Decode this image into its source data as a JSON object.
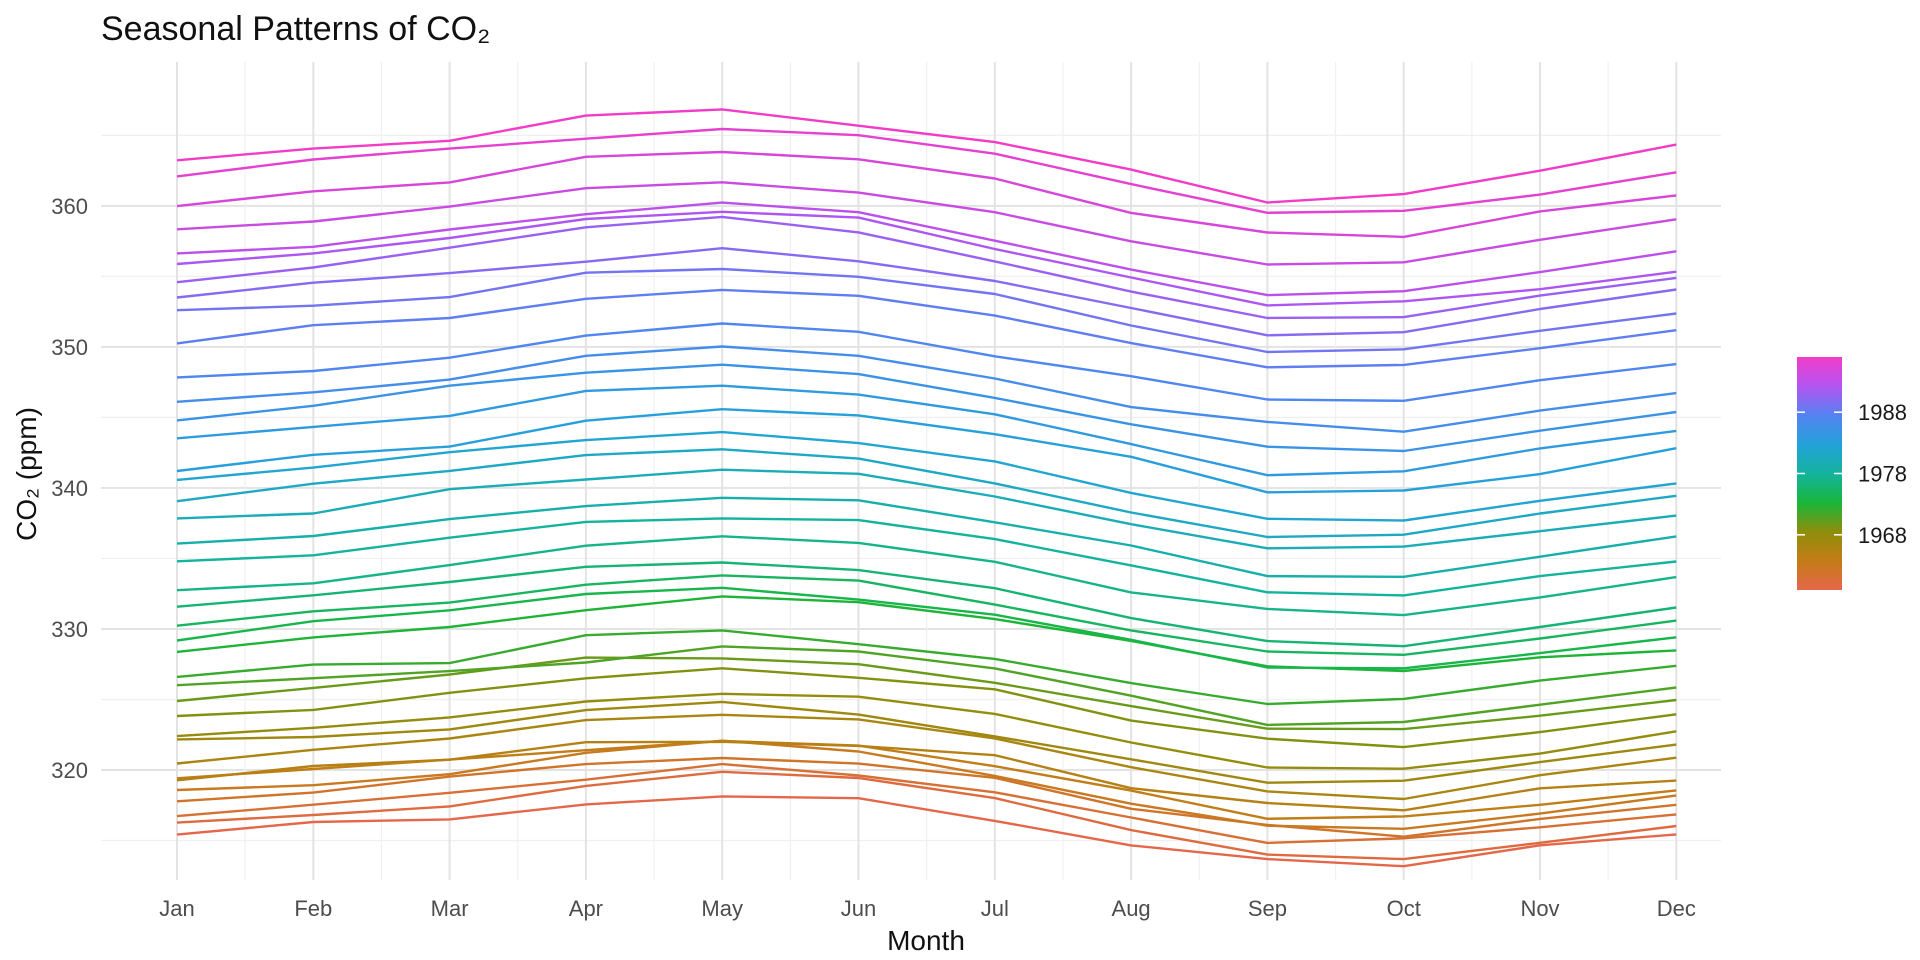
{
  "chart_data": {
    "type": "line",
    "title": "Seasonal Patterns of CO₂",
    "xlabel": "Month",
    "ylabel": "CO₂ (ppm)",
    "categories": [
      "Jan",
      "Feb",
      "Mar",
      "Apr",
      "May",
      "Jun",
      "Jul",
      "Aug",
      "Sep",
      "Oct",
      "Nov",
      "Dec"
    ],
    "ylim": [
      312.2,
      370.2
    ],
    "yticks": [
      320,
      330,
      340,
      350,
      360
    ],
    "grid": true,
    "legend": {
      "position": "right",
      "labels": [
        "1968",
        "1978",
        "1988"
      ],
      "tick_years": [
        1968,
        1978,
        1988
      ],
      "range": [
        1959,
        1997
      ],
      "colors": [
        "#E5674A",
        "#C47C17",
        "#8E8E0B",
        "#18B63A",
        "#14B39E",
        "#23A2DA",
        "#5483F1",
        "#B354F1",
        "#F23CC8"
      ]
    },
    "series": [
      {
        "year": 1959,
        "values": [
          315.42,
          316.31,
          316.5,
          317.56,
          318.13,
          318.0,
          316.39,
          314.65,
          313.68,
          313.18,
          314.66,
          315.43
        ]
      },
      {
        "year": 1960,
        "values": [
          316.27,
          316.81,
          317.42,
          318.87,
          319.87,
          319.43,
          318.01,
          315.74,
          314.0,
          313.68,
          314.84,
          316.03
        ]
      },
      {
        "year": 1961,
        "values": [
          316.73,
          317.54,
          318.38,
          319.31,
          320.42,
          319.61,
          318.42,
          316.63,
          314.83,
          315.16,
          315.94,
          316.85
        ]
      },
      {
        "year": 1962,
        "values": [
          317.78,
          318.4,
          319.53,
          320.42,
          320.85,
          320.45,
          319.45,
          317.25,
          316.11,
          315.27,
          316.53,
          317.53
        ]
      },
      {
        "year": 1963,
        "values": [
          318.58,
          318.92,
          319.7,
          321.22,
          322.08,
          321.31,
          319.58,
          317.61,
          316.05,
          315.83,
          316.91,
          318.2
        ]
      },
      {
        "year": 1964,
        "values": [
          319.41,
          320.07,
          320.74,
          321.4,
          322.06,
          321.73,
          320.27,
          318.54,
          316.54,
          316.71,
          317.53,
          318.55
        ]
      },
      {
        "year": 1965,
        "values": [
          319.27,
          320.28,
          320.73,
          321.97,
          322.0,
          321.71,
          321.05,
          318.71,
          317.66,
          317.14,
          318.7,
          319.25
        ]
      },
      {
        "year": 1966,
        "values": [
          320.46,
          321.43,
          322.23,
          323.54,
          323.91,
          323.59,
          322.24,
          320.2,
          318.48,
          317.94,
          319.63,
          320.87
        ]
      },
      {
        "year": 1967,
        "values": [
          322.17,
          322.34,
          322.88,
          324.25,
          324.83,
          323.93,
          322.38,
          320.76,
          319.1,
          319.24,
          320.56,
          321.8
        ]
      },
      {
        "year": 1968,
        "values": [
          322.4,
          322.99,
          323.73,
          324.86,
          325.4,
          325.2,
          323.98,
          321.95,
          320.18,
          320.09,
          321.16,
          322.74
        ]
      },
      {
        "year": 1969,
        "values": [
          323.83,
          324.26,
          325.47,
          326.5,
          327.21,
          326.54,
          325.72,
          323.5,
          322.22,
          321.62,
          322.69,
          323.95
        ]
      },
      {
        "year": 1970,
        "values": [
          324.89,
          325.82,
          326.77,
          327.97,
          327.91,
          327.5,
          326.18,
          324.53,
          322.93,
          322.9,
          323.85,
          324.96
        ]
      },
      {
        "year": 1971,
        "values": [
          326.01,
          326.51,
          327.01,
          327.62,
          328.76,
          328.4,
          327.2,
          325.27,
          323.2,
          323.4,
          324.63,
          325.85
        ]
      },
      {
        "year": 1972,
        "values": [
          326.6,
          327.47,
          327.58,
          329.56,
          329.9,
          328.92,
          327.88,
          326.16,
          324.68,
          325.04,
          326.34,
          327.39
        ]
      },
      {
        "year": 1973,
        "values": [
          328.37,
          329.4,
          330.14,
          331.33,
          332.31,
          331.9,
          330.7,
          329.15,
          327.35,
          327.02,
          327.99,
          328.48
        ]
      },
      {
        "year": 1974,
        "values": [
          329.18,
          330.55,
          331.32,
          332.48,
          332.92,
          332.08,
          331.01,
          329.23,
          327.27,
          327.21,
          328.29,
          329.41
        ]
      },
      {
        "year": 1975,
        "values": [
          330.23,
          331.25,
          331.87,
          333.14,
          333.8,
          333.43,
          331.73,
          329.9,
          328.4,
          328.17,
          329.32,
          330.59
        ]
      },
      {
        "year": 1976,
        "values": [
          331.58,
          332.39,
          333.33,
          334.41,
          334.71,
          334.17,
          332.89,
          330.77,
          329.14,
          328.78,
          330.14,
          331.52
        ]
      },
      {
        "year": 1977,
        "values": [
          332.75,
          333.24,
          334.53,
          335.9,
          336.57,
          336.1,
          334.76,
          332.59,
          331.42,
          330.98,
          332.24,
          333.68
        ]
      },
      {
        "year": 1978,
        "values": [
          334.8,
          335.22,
          336.47,
          337.59,
          337.84,
          337.72,
          336.37,
          334.51,
          332.6,
          332.38,
          333.75,
          334.78
        ]
      },
      {
        "year": 1979,
        "values": [
          336.05,
          336.59,
          337.79,
          338.71,
          339.3,
          339.12,
          337.56,
          335.92,
          333.75,
          333.7,
          335.12,
          336.56
        ]
      },
      {
        "year": 1980,
        "values": [
          337.84,
          338.19,
          339.91,
          340.6,
          341.29,
          341.0,
          339.39,
          337.43,
          335.72,
          335.84,
          336.93,
          338.04
        ]
      },
      {
        "year": 1981,
        "values": [
          339.06,
          340.3,
          341.21,
          342.33,
          342.74,
          342.08,
          340.32,
          338.26,
          336.52,
          336.68,
          338.19,
          339.44
        ]
      },
      {
        "year": 1982,
        "values": [
          340.57,
          341.44,
          342.53,
          343.39,
          343.96,
          343.18,
          341.88,
          339.65,
          337.81,
          337.69,
          339.09,
          340.32
        ]
      },
      {
        "year": 1983,
        "values": [
          341.2,
          342.35,
          342.93,
          344.77,
          345.58,
          345.14,
          343.81,
          342.21,
          339.69,
          339.82,
          340.98,
          342.82
        ]
      },
      {
        "year": 1984,
        "values": [
          343.52,
          344.33,
          345.11,
          346.88,
          347.25,
          346.62,
          345.22,
          343.11,
          340.9,
          341.18,
          342.8,
          344.04
        ]
      },
      {
        "year": 1985,
        "values": [
          344.79,
          345.82,
          347.25,
          348.17,
          348.74,
          348.07,
          346.38,
          344.51,
          342.92,
          342.62,
          344.06,
          345.38
        ]
      },
      {
        "year": 1986,
        "values": [
          346.11,
          346.78,
          347.68,
          349.37,
          350.03,
          349.37,
          347.76,
          345.73,
          344.68,
          343.99,
          345.48,
          346.72
        ]
      },
      {
        "year": 1987,
        "values": [
          347.84,
          348.29,
          349.23,
          350.8,
          351.66,
          351.07,
          349.33,
          347.92,
          346.27,
          346.18,
          347.64,
          348.78
        ]
      },
      {
        "year": 1988,
        "values": [
          350.25,
          351.54,
          352.05,
          353.41,
          354.04,
          353.62,
          352.22,
          350.27,
          348.55,
          348.72,
          349.91,
          351.18
        ]
      },
      {
        "year": 1989,
        "values": [
          352.6,
          352.92,
          353.53,
          355.26,
          355.52,
          354.97,
          353.75,
          351.52,
          349.64,
          349.83,
          351.14,
          352.37
        ]
      },
      {
        "year": 1990,
        "values": [
          353.5,
          354.55,
          355.23,
          356.04,
          357.0,
          356.07,
          354.67,
          352.76,
          350.82,
          351.04,
          352.69,
          354.07
        ]
      },
      {
        "year": 1991,
        "values": [
          354.59,
          355.63,
          357.03,
          358.48,
          359.22,
          358.12,
          356.06,
          353.92,
          352.05,
          352.11,
          353.64,
          354.89
        ]
      },
      {
        "year": 1992,
        "values": [
          355.88,
          356.63,
          357.72,
          359.07,
          359.58,
          359.17,
          356.94,
          354.92,
          352.94,
          353.23,
          354.09,
          355.33
        ]
      },
      {
        "year": 1993,
        "values": [
          356.63,
          357.1,
          358.32,
          359.41,
          360.23,
          359.55,
          357.53,
          355.48,
          353.67,
          353.95,
          355.3,
          356.78
        ]
      },
      {
        "year": 1994,
        "values": [
          358.34,
          358.89,
          359.95,
          361.25,
          361.67,
          360.94,
          359.55,
          357.49,
          355.84,
          356.0,
          357.59,
          359.05
        ]
      },
      {
        "year": 1995,
        "values": [
          359.98,
          361.03,
          361.66,
          363.48,
          363.82,
          363.3,
          361.94,
          359.5,
          358.11,
          357.8,
          359.61,
          360.74
        ]
      },
      {
        "year": 1996,
        "values": [
          362.09,
          363.29,
          364.06,
          364.76,
          365.45,
          365.01,
          363.7,
          361.54,
          359.51,
          359.65,
          360.8,
          362.38
        ]
      },
      {
        "year": 1997,
        "values": [
          363.23,
          364.06,
          364.61,
          366.4,
          366.84,
          365.68,
          364.52,
          362.57,
          360.24,
          360.83,
          362.49,
          364.34
        ]
      }
    ]
  }
}
